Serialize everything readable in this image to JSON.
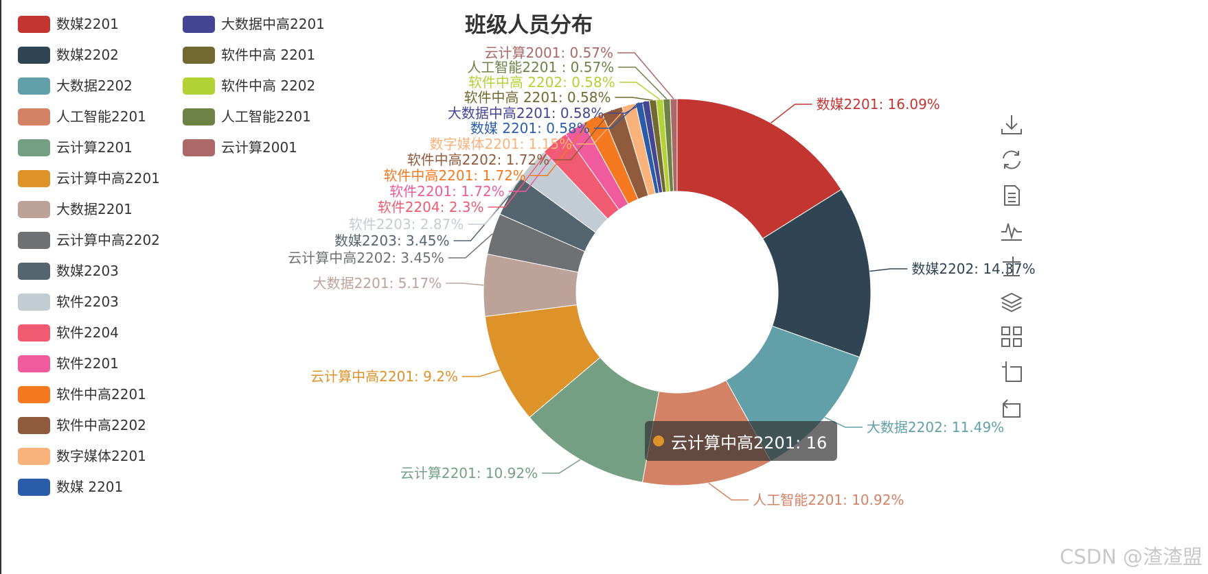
{
  "colors": {
    "tooltip_marker": "#de922a"
  },
  "chart_data": {
    "type": "pie",
    "style": "donut",
    "title": "班级人员分布",
    "legend": "left",
    "slices": [
      {
        "name": "数媒2201",
        "value": 28,
        "percent": "16.09%",
        "color": "#c23531",
        "label": "数媒2201: 16.09%"
      },
      {
        "name": "数媒2202",
        "value": 25,
        "percent": "14.37%",
        "color": "#2f4554",
        "label": "数媒2202: 14.37%"
      },
      {
        "name": "大数据2202",
        "value": 20,
        "percent": "11.49%",
        "color": "#61a0a8",
        "label": "大数据2202: 11.49%"
      },
      {
        "name": "人工智能2201",
        "value": 19,
        "percent": "10.92%",
        "color": "#d48265",
        "label": "人工智能2201: 10.92%"
      },
      {
        "name": "云计算2201",
        "value": 19,
        "percent": "10.92%",
        "color": "#749f83",
        "label": "云计算2201: 10.92%"
      },
      {
        "name": "云计算中高2201",
        "value": 16,
        "percent": "9.2%",
        "color": "#de922a",
        "label": "云计算中高2201: 9.2%"
      },
      {
        "name": "大数据2201",
        "value": 9,
        "percent": "5.17%",
        "color": "#bda29a",
        "label": "大数据2201: 5.17%"
      },
      {
        "name": "云计算中高2202",
        "value": 6,
        "percent": "3.45%",
        "color": "#6e7074",
        "label": "云计算中高2202: 3.45%"
      },
      {
        "name": "数媒2203",
        "value": 6,
        "percent": "3.45%",
        "color": "#546570",
        "label": "数媒2203: 3.45%"
      },
      {
        "name": "软件2203",
        "value": 5,
        "percent": "2.87%",
        "color": "#c4ccd3",
        "label": "软件2203: 2.87%"
      },
      {
        "name": "软件2204",
        "value": 4,
        "percent": "2.3%",
        "color": "#f05b72",
        "label": "软件2204: 2.3%"
      },
      {
        "name": "软件2201",
        "value": 3,
        "percent": "1.72%",
        "color": "#ef5b9c",
        "label": "软件2201: 1.72%"
      },
      {
        "name": "软件中高2201",
        "value": 3,
        "percent": "1.72%",
        "color": "#f47920",
        "label": "软件中高2201: 1.72%"
      },
      {
        "name": "软件中高2202",
        "value": 3,
        "percent": "1.72%",
        "color": "#905a3d",
        "label": "软件中高2202: 1.72%"
      },
      {
        "name": "数字媒体2201",
        "value": 2,
        "percent": "1.15%",
        "color": "#fab27b",
        "label": "数字媒体2201: 1.15%"
      },
      {
        "name": "数媒 2201",
        "value": 1,
        "percent": "0.58%",
        "color": "#2a5caa",
        "label": "数媒 2201: 0.58%"
      },
      {
        "name": "大数据中高2201",
        "value": 1,
        "percent": "0.58%",
        "color": "#444693",
        "label": "大数据中高2201: 0.58%"
      },
      {
        "name": "软件中高 2201",
        "value": 1,
        "percent": "0.58%",
        "color": "#726930",
        "label": "软件中高 2201: 0.58%"
      },
      {
        "name": "软件中高 2202",
        "value": 1,
        "percent": "0.58%",
        "color": "#b2d235",
        "label": "软件中高 2202: 0.58%"
      },
      {
        "name": "人工智能2201 ",
        "value": 1,
        "percent": "0.57%",
        "color": "#6d8346",
        "label": "人工智能2201 : 0.57%"
      },
      {
        "name": "云计算2001",
        "value": 1,
        "percent": "0.57%",
        "color": "#ac6767",
        "label": "云计算2001: 0.57%"
      }
    ]
  },
  "tooltip": {
    "text": "云计算中高2201: 16"
  },
  "toolbox": [
    {
      "name": "download-icon"
    },
    {
      "name": "refresh-icon"
    },
    {
      "name": "data-view-icon"
    },
    {
      "name": "line-chart-icon"
    },
    {
      "name": "bar-chart-icon"
    },
    {
      "name": "stack-icon"
    },
    {
      "name": "tiled-icon"
    },
    {
      "name": "zoom-icon"
    },
    {
      "name": "zoom-reset-icon"
    }
  ],
  "watermark": "CSDN @渣渣盟"
}
